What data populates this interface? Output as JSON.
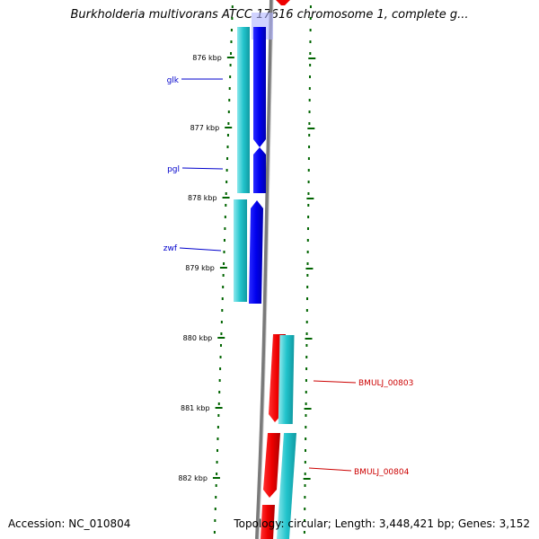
{
  "title": "Burkholderia multivorans ATCC 17616 chromosome 1, complete g...",
  "footer": {
    "accession": "Accession: NC_010804",
    "summary": "Topology: circular; Length: 3,448,421 bp; Genes: 3,152"
  },
  "ticks": [
    {
      "label": "876 kbp",
      "kb": 876
    },
    {
      "label": "877 kbp",
      "kb": 877
    },
    {
      "label": "878 kbp",
      "kb": 878
    },
    {
      "label": "879 kbp",
      "kb": 879
    },
    {
      "label": "880 kbp",
      "kb": 880
    },
    {
      "label": "881 kbp",
      "kb": 881
    },
    {
      "label": "882 kbp",
      "kb": 882
    }
  ],
  "genes": [
    {
      "name": "glk",
      "strand": "minus",
      "color": "#0000ee",
      "label_color": "#0000cc"
    },
    {
      "name": "pgl",
      "strand": "minus",
      "color": "#0000ee",
      "label_color": "#0000cc"
    },
    {
      "name": "zwf",
      "strand": "minus",
      "color": "#0000ee",
      "label_color": "#0000cc"
    },
    {
      "name": "BMULJ_00803",
      "strand": "plus",
      "color": "#ee0000",
      "label_color": "#cc0000"
    },
    {
      "name": "BMULJ_00804",
      "strand": "plus",
      "color": "#ee0000",
      "label_color": "#cc0000"
    }
  ],
  "colors": {
    "backbone": "#808080",
    "cds": "#20c0c8",
    "tick": "#006400",
    "forward": "#ee0000",
    "reverse": "#0000ee"
  }
}
